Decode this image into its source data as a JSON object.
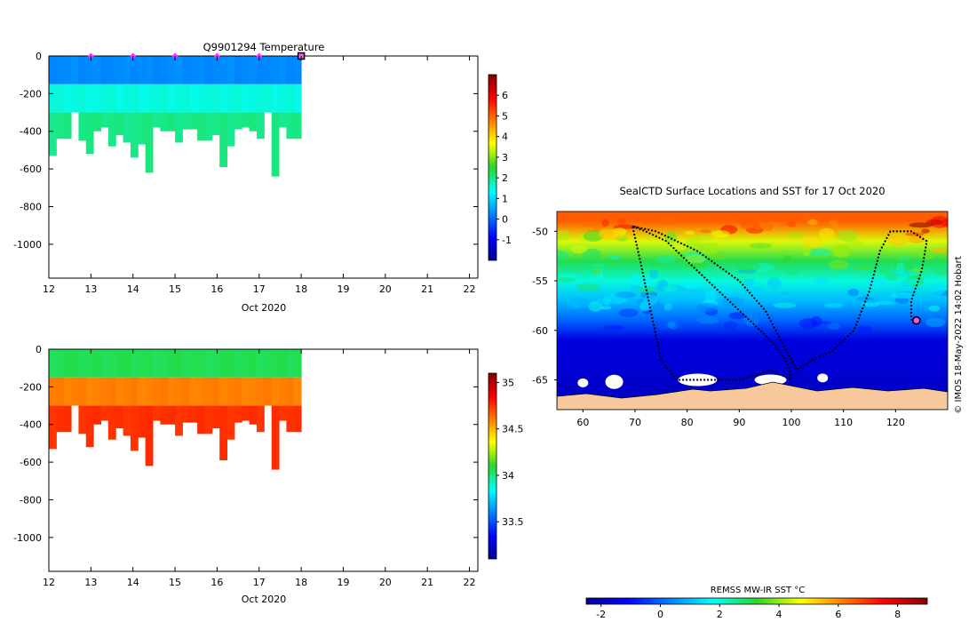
{
  "chart_data": [
    {
      "type": "heatmap",
      "title": "Q9901294  Temperature",
      "xlabel": "Oct 2020",
      "ylabel": "",
      "x_ticks": [
        12,
        13,
        14,
        15,
        16,
        17,
        18,
        19,
        20,
        21,
        22
      ],
      "y_ticks": [
        0,
        -200,
        -400,
        -600,
        -800,
        -1000
      ],
      "xlim": [
        12,
        22.2
      ],
      "ylim": [
        -1180,
        0
      ],
      "colorbar": {
        "ticks": [
          -1,
          0,
          1,
          2,
          3,
          4,
          5,
          6
        ],
        "range": [
          -2,
          7
        ]
      },
      "surface_markers_x": [
        13,
        14,
        15,
        16,
        17
      ],
      "last_profile_x": 18,
      "data_extent_x": [
        12,
        18
      ],
      "layers_degC": [
        {
          "depth_range": [
            0,
            -150
          ],
          "value": 0.3
        },
        {
          "depth_range": [
            -150,
            -300
          ],
          "value": 1.5
        },
        {
          "depth_range": [
            -300,
            "max"
          ],
          "value": 2.0
        }
      ],
      "profile_max_depths": [
        -530,
        -440,
        -440,
        -300,
        -450,
        -520,
        -400,
        -380,
        -480,
        -420,
        -460,
        -540,
        -470,
        -620,
        -380,
        -400,
        -400,
        -460,
        -390,
        -390,
        -450,
        -450,
        -420,
        -590,
        -480,
        -390,
        -380,
        -400,
        -440,
        -300,
        -640,
        -380,
        -440,
        -440
      ]
    },
    {
      "type": "heatmap",
      "title": "",
      "xlabel": "Oct 2020",
      "ylabel": "",
      "x_ticks": [
        12,
        13,
        14,
        15,
        16,
        17,
        18,
        19,
        20,
        21,
        22
      ],
      "y_ticks": [
        0,
        -200,
        -400,
        -600,
        -800,
        -1000
      ],
      "xlim": [
        12,
        22.2
      ],
      "ylim": [
        -1180,
        0
      ],
      "colorbar": {
        "ticks": [
          33.5,
          34,
          34.5,
          35
        ],
        "range": [
          33.1,
          35.1
        ]
      },
      "data_extent_x": [
        12,
        18
      ],
      "layers_psu": [
        {
          "depth_range": [
            0,
            -150
          ],
          "value": 34.05
        },
        {
          "depth_range": [
            -150,
            -300
          ],
          "value": 34.6
        },
        {
          "depth_range": [
            -300,
            "max"
          ],
          "value": 34.75
        }
      ]
    },
    {
      "type": "heatmap",
      "title": "SealCTD Surface Locations and SST for 17 Oct 2020",
      "xlabel": "",
      "ylabel": "",
      "x_ticks": [
        60,
        70,
        80,
        90,
        100,
        110,
        120
      ],
      "y_ticks": [
        -50,
        -55,
        -60,
        -65
      ],
      "xlim": [
        55,
        130
      ],
      "ylim": [
        -68,
        -48
      ],
      "side_text": "© IMOS 18-May-2022 14:02 Hobart",
      "colorbar": {
        "label": "REMSS MW-IR SST °C",
        "ticks": [
          -2,
          0,
          2,
          4,
          6,
          8
        ],
        "range": [
          -2.5,
          9
        ]
      },
      "sst_zonal_mean_degC": [
        {
          "lat": -49,
          "value": 6.5
        },
        {
          "lat": -51,
          "value": 4.5
        },
        {
          "lat": -53,
          "value": 3.0
        },
        {
          "lat": -55,
          "value": 2.0
        },
        {
          "lat": -57,
          "value": 1.0
        },
        {
          "lat": -59,
          "value": 0.0
        },
        {
          "lat": -61,
          "value": -1.5
        },
        {
          "lat": -66,
          "value": -1.8
        }
      ],
      "track_lon_lat": [
        [
          69.5,
          -49.5
        ],
        [
          72,
          -50
        ],
        [
          76,
          -51
        ],
        [
          80,
          -53
        ],
        [
          84,
          -55
        ],
        [
          88,
          -57
        ],
        [
          92,
          -59
        ],
        [
          96,
          -61
        ],
        [
          99,
          -63
        ],
        [
          100,
          -65
        ],
        [
          96,
          -64
        ],
        [
          90,
          -65
        ],
        [
          84,
          -65
        ],
        [
          78,
          -65
        ],
        [
          75,
          -63
        ],
        [
          73,
          -58
        ],
        [
          71,
          -53
        ],
        [
          69.5,
          -49.5
        ],
        [
          74,
          -50
        ],
        [
          82,
          -52
        ],
        [
          90,
          -55
        ],
        [
          95,
          -58
        ],
        [
          98,
          -61
        ],
        [
          101,
          -64
        ],
        [
          104,
          -63
        ],
        [
          108,
          -62
        ],
        [
          112,
          -60
        ],
        [
          115,
          -56
        ],
        [
          117,
          -52
        ],
        [
          119,
          -50
        ],
        [
          123,
          -50
        ],
        [
          126,
          -51
        ],
        [
          125,
          -54
        ],
        [
          123,
          -57
        ],
        [
          123,
          -59
        ]
      ],
      "current_location": [
        124,
        -59
      ]
    }
  ]
}
